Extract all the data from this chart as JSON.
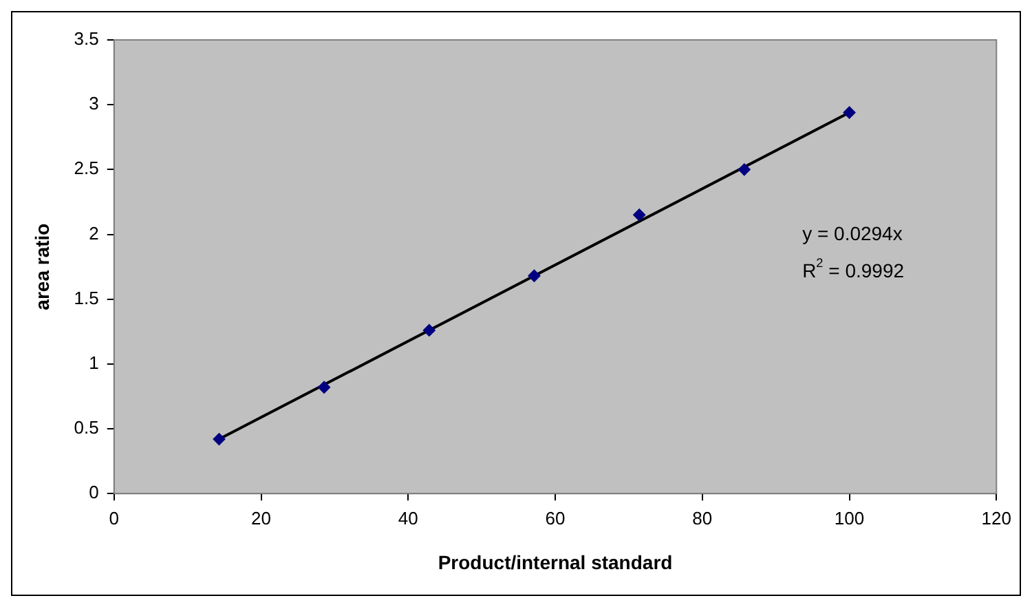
{
  "chart_data": {
    "type": "scatter",
    "xlabel": "Product/internal standard",
    "ylabel": "area ratio",
    "x": [
      14.29,
      28.57,
      42.86,
      57.14,
      71.43,
      85.71,
      100
    ],
    "series": [
      {
        "type": "scatter",
        "color": "#000080",
        "values": [
          0.42,
          0.82,
          1.26,
          1.68,
          2.15,
          2.5,
          2.94
        ],
        "marker": "diamond"
      },
      {
        "type": "line",
        "color": "#000000",
        "x": [
          14.29,
          100
        ],
        "values": [
          0.42,
          2.94
        ],
        "marker": "none"
      }
    ],
    "xlim": [
      0,
      120
    ],
    "xticks": [
      0,
      20,
      40,
      60,
      80,
      100,
      120
    ],
    "ylim": [
      0,
      3.5
    ],
    "yticks": [
      0,
      0.5,
      1,
      1.5,
      2,
      2.5,
      3,
      3.5
    ],
    "grid": false,
    "legend": false,
    "annotations": [
      "y = 0.0294x",
      "R$^{2}$ = 0.9992"
    ]
  }
}
